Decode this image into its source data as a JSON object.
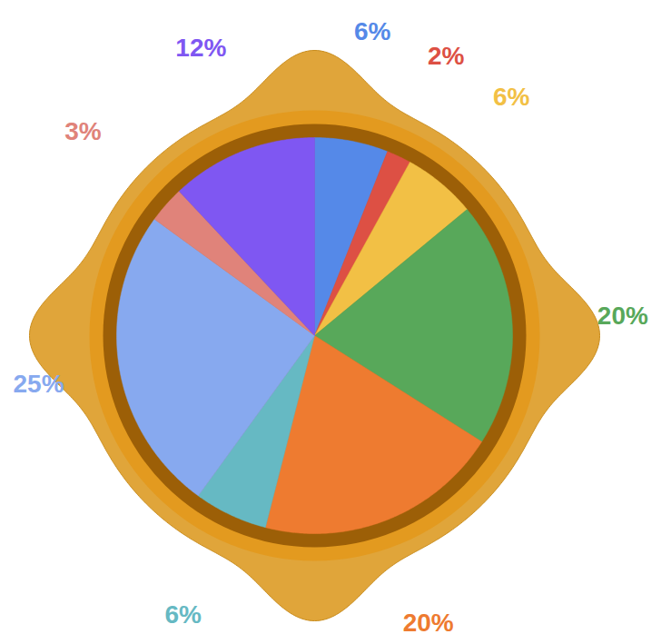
{
  "chart_data": {
    "type": "pie",
    "values": [
      6,
      2,
      6,
      20,
      20,
      6,
      25,
      3,
      12
    ],
    "value_labels": [
      "6%",
      "2%",
      "6%",
      "20%",
      "20%",
      "6%",
      "25%",
      "3%",
      "12%"
    ],
    "colors": [
      "#5589e8",
      "#dd5044",
      "#f2c045",
      "#58a85a",
      "#ee7b30",
      "#66b9c3",
      "#87a9ef",
      "#e0837a",
      "#7f57f2"
    ],
    "data_labels": true
  }
}
